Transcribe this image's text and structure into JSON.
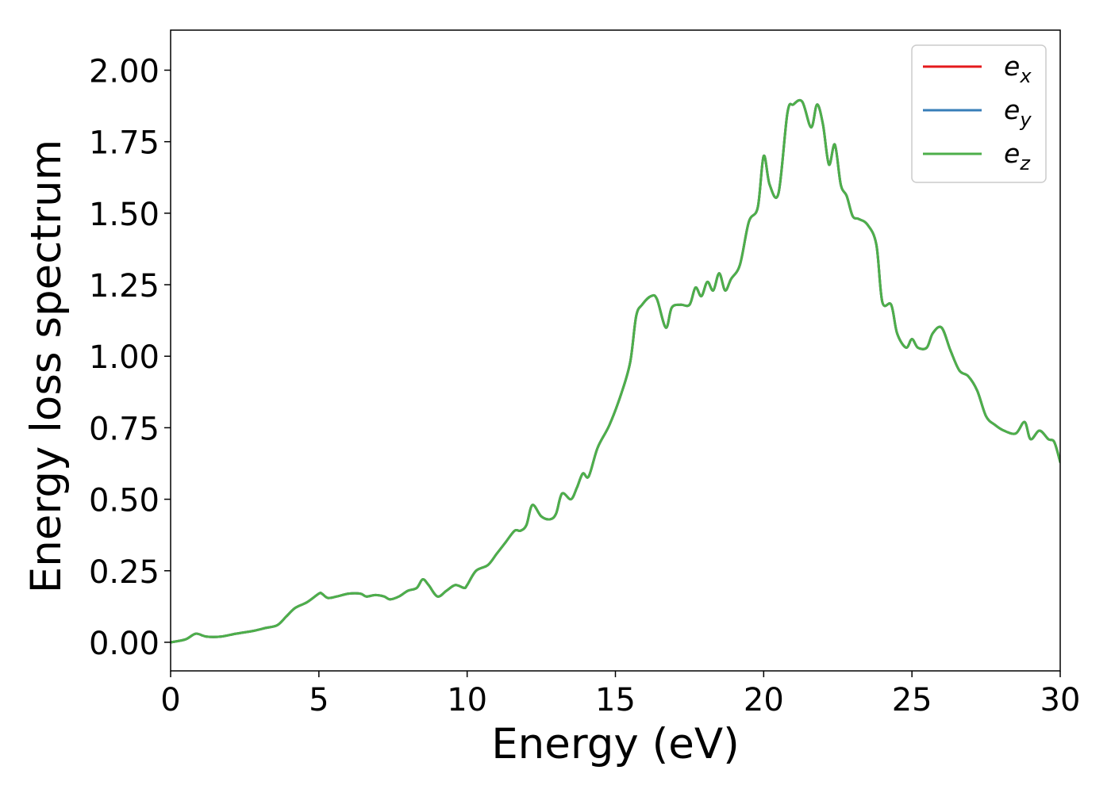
{
  "chart_data": {
    "type": "line",
    "xlabel": "Energy (eV)",
    "ylabel": "Energy loss spectrum",
    "xlim": [
      0,
      30
    ],
    "ylim": [
      -0.1,
      2.14
    ],
    "xticks": [
      0,
      5,
      10,
      15,
      20,
      25,
      30
    ],
    "xtick_labels": [
      "0",
      "5",
      "10",
      "15",
      "20",
      "25",
      "30"
    ],
    "yticks": [
      0.0,
      0.25,
      0.5,
      0.75,
      1.0,
      1.25,
      1.5,
      1.75,
      2.0
    ],
    "ytick_labels": [
      "0.00",
      "0.25",
      "0.50",
      "0.75",
      "1.00",
      "1.25",
      "1.50",
      "1.75",
      "2.00"
    ],
    "grid": false,
    "legend": {
      "placement": "top-right"
    },
    "x": [
      0.0,
      0.5,
      0.85,
      1.2,
      1.7,
      2.2,
      2.8,
      3.2,
      3.6,
      3.9,
      4.2,
      4.6,
      5.0,
      5.1,
      5.3,
      5.6,
      6.0,
      6.4,
      6.6,
      6.9,
      7.2,
      7.4,
      7.7,
      8.0,
      8.3,
      8.5,
      8.7,
      9.0,
      9.3,
      9.6,
      9.9,
      10.0,
      10.3,
      10.7,
      11.0,
      11.3,
      11.6,
      11.8,
      12.0,
      12.2,
      12.5,
      12.8,
      13.0,
      13.2,
      13.5,
      13.7,
      13.9,
      14.1,
      14.4,
      14.8,
      15.2,
      15.5,
      15.7,
      15.9,
      16.2,
      16.4,
      16.7,
      16.9,
      17.2,
      17.5,
      17.7,
      17.9,
      18.1,
      18.3,
      18.5,
      18.7,
      18.9,
      19.2,
      19.5,
      19.8,
      20.0,
      20.2,
      20.5,
      20.8,
      21.0,
      21.3,
      21.6,
      21.8,
      22.0,
      22.2,
      22.4,
      22.6,
      22.8,
      23.0,
      23.2,
      23.5,
      23.8,
      24.0,
      24.3,
      24.5,
      24.8,
      25.0,
      25.2,
      25.5,
      25.7,
      26.0,
      26.3,
      26.6,
      26.9,
      27.2,
      27.5,
      27.8,
      28.1,
      28.5,
      28.8,
      29.0,
      29.3,
      29.6,
      29.8,
      30.0
    ],
    "series": [
      {
        "name": "e_x",
        "label_base": "e",
        "label_sub": "x",
        "color": "#e41a1c",
        "y": [
          0.0,
          0.01,
          0.03,
          0.02,
          0.02,
          0.03,
          0.04,
          0.05,
          0.06,
          0.09,
          0.12,
          0.14,
          0.17,
          0.17,
          0.155,
          0.16,
          0.17,
          0.17,
          0.16,
          0.165,
          0.16,
          0.15,
          0.16,
          0.18,
          0.19,
          0.22,
          0.2,
          0.16,
          0.18,
          0.2,
          0.19,
          0.2,
          0.25,
          0.27,
          0.31,
          0.35,
          0.39,
          0.39,
          0.41,
          0.48,
          0.44,
          0.43,
          0.45,
          0.52,
          0.5,
          0.54,
          0.59,
          0.58,
          0.68,
          0.76,
          0.87,
          0.98,
          1.14,
          1.18,
          1.21,
          1.2,
          1.1,
          1.17,
          1.18,
          1.18,
          1.24,
          1.21,
          1.26,
          1.23,
          1.29,
          1.23,
          1.27,
          1.32,
          1.47,
          1.52,
          1.7,
          1.6,
          1.57,
          1.85,
          1.88,
          1.89,
          1.8,
          1.88,
          1.81,
          1.67,
          1.74,
          1.6,
          1.56,
          1.49,
          1.48,
          1.46,
          1.39,
          1.19,
          1.18,
          1.08,
          1.03,
          1.06,
          1.03,
          1.03,
          1.08,
          1.1,
          1.02,
          0.95,
          0.93,
          0.88,
          0.79,
          0.76,
          0.74,
          0.73,
          0.77,
          0.71,
          0.74,
          0.71,
          0.7,
          0.63
        ]
      },
      {
        "name": "e_y",
        "label_base": "e",
        "label_sub": "y",
        "color": "#377eb8",
        "y": [
          0.0,
          0.01,
          0.03,
          0.02,
          0.02,
          0.03,
          0.04,
          0.05,
          0.06,
          0.09,
          0.12,
          0.14,
          0.17,
          0.17,
          0.155,
          0.16,
          0.17,
          0.17,
          0.16,
          0.165,
          0.16,
          0.15,
          0.16,
          0.18,
          0.19,
          0.22,
          0.2,
          0.16,
          0.18,
          0.2,
          0.19,
          0.2,
          0.25,
          0.27,
          0.31,
          0.35,
          0.39,
          0.39,
          0.41,
          0.48,
          0.44,
          0.43,
          0.45,
          0.52,
          0.5,
          0.54,
          0.59,
          0.58,
          0.68,
          0.76,
          0.87,
          0.98,
          1.14,
          1.18,
          1.21,
          1.2,
          1.1,
          1.17,
          1.18,
          1.18,
          1.24,
          1.21,
          1.26,
          1.23,
          1.29,
          1.23,
          1.27,
          1.32,
          1.47,
          1.52,
          1.7,
          1.6,
          1.57,
          1.85,
          1.88,
          1.89,
          1.8,
          1.88,
          1.81,
          1.67,
          1.74,
          1.6,
          1.56,
          1.49,
          1.48,
          1.46,
          1.39,
          1.19,
          1.18,
          1.08,
          1.03,
          1.06,
          1.03,
          1.03,
          1.08,
          1.1,
          1.02,
          0.95,
          0.93,
          0.88,
          0.79,
          0.76,
          0.74,
          0.73,
          0.77,
          0.71,
          0.74,
          0.71,
          0.7,
          0.63
        ]
      },
      {
        "name": "e_z",
        "label_base": "e",
        "label_sub": "z",
        "color": "#4daf4a",
        "y": [
          0.0,
          0.01,
          0.03,
          0.02,
          0.02,
          0.03,
          0.04,
          0.05,
          0.06,
          0.09,
          0.12,
          0.14,
          0.17,
          0.17,
          0.155,
          0.16,
          0.17,
          0.17,
          0.16,
          0.165,
          0.16,
          0.15,
          0.16,
          0.18,
          0.19,
          0.22,
          0.2,
          0.16,
          0.18,
          0.2,
          0.19,
          0.2,
          0.25,
          0.27,
          0.31,
          0.35,
          0.39,
          0.39,
          0.41,
          0.48,
          0.44,
          0.43,
          0.45,
          0.52,
          0.5,
          0.54,
          0.59,
          0.58,
          0.68,
          0.76,
          0.87,
          0.98,
          1.14,
          1.18,
          1.21,
          1.2,
          1.1,
          1.17,
          1.18,
          1.18,
          1.24,
          1.21,
          1.26,
          1.23,
          1.29,
          1.23,
          1.27,
          1.32,
          1.47,
          1.52,
          1.7,
          1.6,
          1.57,
          1.85,
          1.88,
          1.89,
          1.8,
          1.88,
          1.81,
          1.67,
          1.74,
          1.6,
          1.56,
          1.49,
          1.48,
          1.46,
          1.39,
          1.19,
          1.18,
          1.08,
          1.03,
          1.06,
          1.03,
          1.03,
          1.08,
          1.1,
          1.02,
          0.95,
          0.93,
          0.88,
          0.79,
          0.76,
          0.74,
          0.73,
          0.77,
          0.71,
          0.74,
          0.71,
          0.7,
          0.63
        ]
      }
    ]
  }
}
